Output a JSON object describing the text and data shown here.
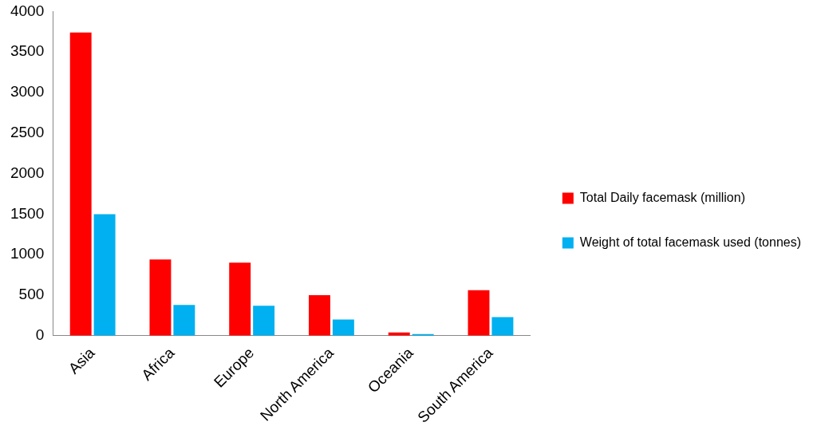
{
  "chart_data": {
    "type": "bar",
    "categories": [
      "Asia",
      "Africa",
      "Europe",
      "North America",
      "Oceania",
      "South America"
    ],
    "series": [
      {
        "name": "Total Daily facemask (million)",
        "color": "#ff0000",
        "values": [
          3740,
          940,
          900,
          500,
          40,
          560
        ]
      },
      {
        "name": "Weight of total facemask used (tonnes)",
        "color": "#00b0f0",
        "values": [
          1500,
          380,
          370,
          200,
          20,
          230
        ]
      }
    ],
    "ylim": [
      0,
      4000
    ],
    "yticks": [
      0,
      500,
      1000,
      1500,
      2000,
      2500,
      3000,
      3500,
      4000
    ],
    "grid": false,
    "legend": "right"
  }
}
